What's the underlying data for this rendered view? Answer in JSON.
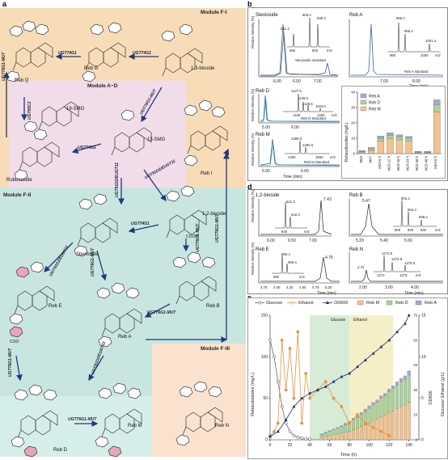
{
  "panel_labels": {
    "a": "a",
    "b": "b",
    "c": "c",
    "d": "d",
    "e": "e"
  },
  "panel_a": {
    "modules": {
      "fi": "Module F-I",
      "ad": "Module A~D",
      "fii": "Module F-II",
      "fiii": "Module F-III"
    },
    "compounds": {
      "reb_q": "Reb Q",
      "reb_g": "Reb G",
      "bioside13": "1,3-bioside",
      "smg19": "19-SMG",
      "smg13": "13-SMG",
      "rubusoside": "Rubusoside",
      "reb_i": "Reb I",
      "stevioside": "Stevioside",
      "bioside12": "1,2-bioside",
      "reb_e": "Reb E",
      "reb_a": "Reb A",
      "reb_b": "Reb B",
      "reb_m": "Reb M",
      "reb_n": "Reb N",
      "reb_d": "Reb D"
    },
    "enzymes": {
      "e1": "UGT76G1-MUT",
      "e2": "UGT74G1",
      "e3": "UGT76G1-MUT",
      "e4": "UGT85C2",
      "e5": "UGT74G1",
      "e6": "UGT91D2/EUGT11",
      "e7": "UGT91D2/EUGT11",
      "e8": "UGT74G1",
      "e9": "UGT76G1-MUT",
      "e10": "UGT91D2/EUGT11",
      "e11": "UGT76G1-MUT",
      "e12": "UGT76G1-MUT",
      "e13": "UGT74G1",
      "e14": "UGT76G1-MUT",
      "e15": "UGT91D2/EUGT11",
      "e16": "UGT76G1-MUT"
    },
    "cooh": "COOH",
    "coo": "COO"
  },
  "panel_b": {
    "ylabel": "Relative intensity\n(%)",
    "xlabel": "Time (min)",
    "mz": "m/z",
    "subplots": [
      {
        "name": "Stevioside",
        "std": "Stevioside standard",
        "ticks": [
          "6.00",
          "6.50",
          "7.00"
        ],
        "peaks": [
          "641.3",
          "803.4",
          "839.3"
        ],
        "ms_ticks": [
          "650",
          "800"
        ]
      },
      {
        "name": "Reb A",
        "std": "Reb A standard",
        "ticks": [
          "7.00",
          "8.00"
        ],
        "peaks": [
          "965.4",
          "966.4",
          "1001.4"
        ],
        "ms_ticks": [
          "960",
          "1000"
        ]
      },
      {
        "name": "Reb D",
        "std": "Reb D Standard",
        "ticks": [
          "5.00",
          "6.00"
        ],
        "peaks": [
          "1127.5",
          "1128.5",
          "1129.5",
          "1163.5"
        ],
        "ms_ticks": [
          "1100",
          "1200"
        ]
      },
      {
        "name": "Reb M",
        "std": "Reb M Standard",
        "ticks": [
          "5.00",
          "6.00"
        ],
        "peaks": [
          "1289.6",
          "1290.6"
        ],
        "ms_ticks": [
          "1300",
          "1500"
        ]
      }
    ]
  },
  "panel_d": {
    "ylabel": "Relative intensity\n(%)",
    "xlabel": "Time (min)",
    "mz": "m/z",
    "subplots": [
      {
        "name": "1,2-bioside",
        "ticks": [
          "6.00",
          "6.50",
          "7.00"
        ],
        "peaks": [
          "7.43",
          "641.3",
          "642.3"
        ],
        "ms_ticks": [
          "640"
        ]
      },
      {
        "name": "Reb B",
        "ticks": [
          "5.20",
          "5.40",
          "5.60"
        ],
        "peaks": [
          "5.47",
          "803.4",
          "804.4",
          "839.4"
        ],
        "ms_ticks": [
          "800",
          "820",
          "840"
        ]
      },
      {
        "name": "Reb E",
        "ticks": [
          "3.75",
          "4.00",
          "4.25",
          "4.50",
          "4.75",
          "5.00"
        ],
        "peaks": [
          "4.75",
          "965.4",
          "966.4"
        ],
        "ms_ticks": [
          "960"
        ]
      },
      {
        "name": "Reb N",
        "ticks": [
          "2.00",
          "3.00",
          "4.00"
        ],
        "peaks": [
          "2.72",
          "1273.5",
          "1274.6",
          "1275.5"
        ],
        "ms_ticks": [
          "1273",
          "1275"
        ]
      }
    ]
  },
  "chart_data": [
    {
      "type": "bar",
      "ylabel": "Rebaudiosides (mg/L)",
      "ylim": [
        0,
        40
      ],
      "yticks": [
        "0",
        "10",
        "20",
        "30",
        "40"
      ],
      "legend_position": "top-left",
      "categories": [
        "M04",
        "M07",
        "M23-6 h",
        "M23-12 h",
        "M23-18 h",
        "M23-24 h",
        "M23-48 h",
        "M23-48 h",
        "M24-0 h"
      ],
      "series": [
        {
          "name": "Reb M",
          "color": "#f4c290",
          "values": [
            1,
            2,
            8,
            10,
            9,
            8,
            0.5,
            0.5,
            27
          ]
        },
        {
          "name": "Reb D",
          "color": "#a9d49a",
          "values": [
            0.5,
            1,
            2,
            2,
            2,
            2,
            0.5,
            0.5,
            5
          ]
        },
        {
          "name": "Reb A",
          "color": "#a6a7d6",
          "values": [
            0.5,
            1,
            1.5,
            1.5,
            1.2,
            1.2,
            0.5,
            0.5,
            3
          ]
        }
      ]
    },
    {
      "type": "bar",
      "ylabel": "Rebaudiosides (mg/L)",
      "y2label": "Glucose/ Ethanol  (g/L)",
      "y3label": "OD600",
      "xlabel": "Time (h)",
      "xlim": [
        0,
        150
      ],
      "ylim": [
        0,
        150
      ],
      "y2lim": [
        0,
        15
      ],
      "xticks": [
        "0",
        "20",
        "40",
        "60",
        "80",
        "100",
        "120",
        "140"
      ],
      "yticks": [
        "0",
        "50",
        "100",
        "150"
      ],
      "y2ticks": [
        "0",
        "5",
        "10",
        "15"
      ],
      "y3ticks": [
        "0",
        "15",
        "30",
        "45",
        "60",
        "75"
      ],
      "legend": [
        "Glucose",
        "Ethanol",
        "OD600",
        "Reb M",
        "Reb D",
        "Reb A"
      ],
      "phase_labels": [
        "Glucose",
        "Ethanol"
      ],
      "x": [
        52,
        56,
        60,
        64,
        68,
        72,
        76,
        80,
        84,
        88,
        92,
        96,
        100,
        104,
        108,
        112,
        116,
        120,
        124,
        128,
        132,
        136,
        140
      ],
      "series": [
        {
          "name": "Reb M",
          "color": "#f4c290",
          "values": [
            3,
            4,
            5,
            6,
            7,
            8,
            9,
            10,
            12,
            14,
            16,
            18,
            20,
            23,
            25,
            28,
            30,
            33,
            35,
            38,
            40,
            42,
            45
          ]
        },
        {
          "name": "Reb D",
          "color": "#a9d49a",
          "values": [
            3,
            4,
            5,
            6,
            7,
            8,
            9,
            10,
            12,
            13,
            15,
            16,
            18,
            19,
            20,
            22,
            23,
            25,
            27,
            28,
            30,
            31,
            33
          ]
        },
        {
          "name": "Reb A",
          "color": "#a6a7d6",
          "values": [
            1,
            1,
            1,
            1,
            1,
            1,
            2,
            2,
            2,
            2,
            2,
            3,
            3,
            3,
            3,
            3,
            3,
            3,
            3,
            4,
            4,
            4,
            5
          ]
        }
      ],
      "lines": [
        {
          "name": "Glucose",
          "color": "#666",
          "x": [
            0,
            4,
            8,
            12,
            16,
            20,
            24,
            28,
            32,
            36,
            40
          ],
          "values": [
            12,
            10,
            7,
            4,
            2,
            1,
            0.5,
            0.3,
            0.2,
            0.1,
            0.1
          ]
        },
        {
          "name": "Ethanol",
          "color": "#e8943a",
          "x": [
            0,
            4,
            8,
            12,
            16,
            20,
            24,
            28,
            32,
            36,
            40,
            48,
            56,
            64,
            72,
            80,
            88,
            96,
            104,
            112,
            120
          ],
          "values": [
            0.5,
            1,
            2,
            12,
            6,
            11,
            5,
            13,
            2,
            8,
            5,
            6,
            7,
            5,
            4,
            2,
            3,
            2,
            1.5,
            1,
            0.5
          ]
        },
        {
          "name": "OD600",
          "color": "#1d2f6e",
          "x": [
            0,
            8,
            16,
            24,
            32,
            40,
            48,
            56,
            64,
            72,
            80,
            88,
            96,
            104,
            112,
            120,
            128,
            136,
            140
          ],
          "values": [
            2,
            5,
            12,
            20,
            25,
            28,
            30,
            32,
            35,
            38,
            40,
            44,
            48,
            52,
            56,
            60,
            65,
            70,
            75
          ]
        }
      ]
    }
  ]
}
